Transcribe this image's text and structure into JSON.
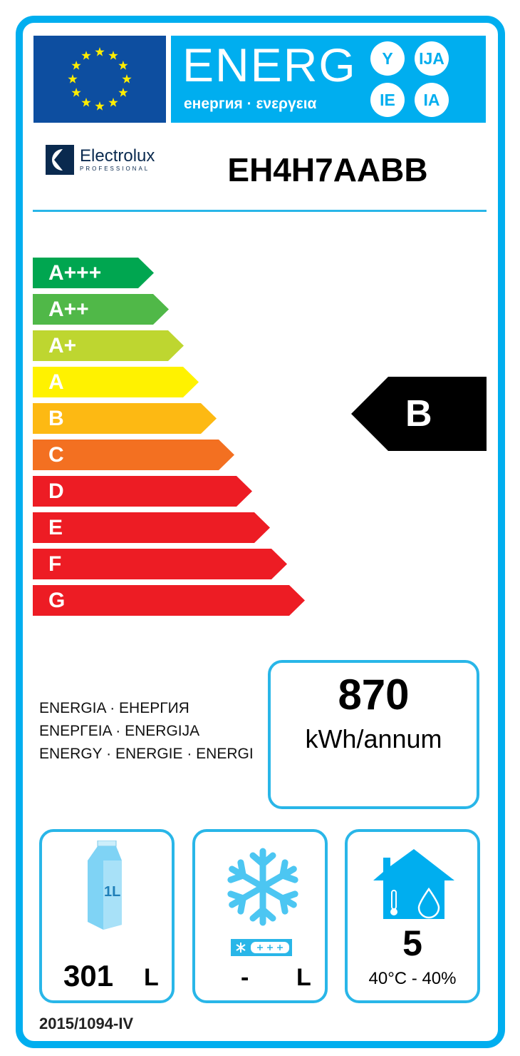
{
  "header": {
    "energ": "ENERG",
    "subtitle": "енергия · ενεργεια",
    "suffixes": [
      "Y",
      "IJA",
      "IE",
      "IA"
    ]
  },
  "supplier": {
    "brand": "Electrolux",
    "brand_sub": "PROFESSIONAL",
    "model": "EH4H7AABB"
  },
  "scale": [
    {
      "label": "A+++",
      "color": "#00a650"
    },
    {
      "label": "A++",
      "color": "#50b848"
    },
    {
      "label": "A+",
      "color": "#bed630"
    },
    {
      "label": "A",
      "color": "#fff200"
    },
    {
      "label": "B",
      "color": "#fdb913"
    },
    {
      "label": "C",
      "color": "#f37021"
    },
    {
      "label": "D",
      "color": "#ed1c24"
    },
    {
      "label": "E",
      "color": "#ed1c24"
    },
    {
      "label": "F",
      "color": "#ed1c24"
    },
    {
      "label": "G",
      "color": "#ed1c24"
    }
  ],
  "rating": "B",
  "consumption": {
    "value": "870",
    "unit": "kWh/annum",
    "labels": [
      "ENERGIA · ЕНЕРГИЯ",
      "ΕΝΕΡΓΕΙΑ · ENERGIJA",
      "ENERGY · ENERGIE · ENERGI"
    ]
  },
  "storage": {
    "value": "301",
    "unit": "L",
    "carton_label": "1L"
  },
  "frozen": {
    "value": "-",
    "unit": "L"
  },
  "climate": {
    "class": "5",
    "conditions": "40°C - 40%"
  },
  "regulation": "2015/1094-IV",
  "colors": {
    "frame": "#00aeef",
    "flag": "#0d4ea0"
  }
}
